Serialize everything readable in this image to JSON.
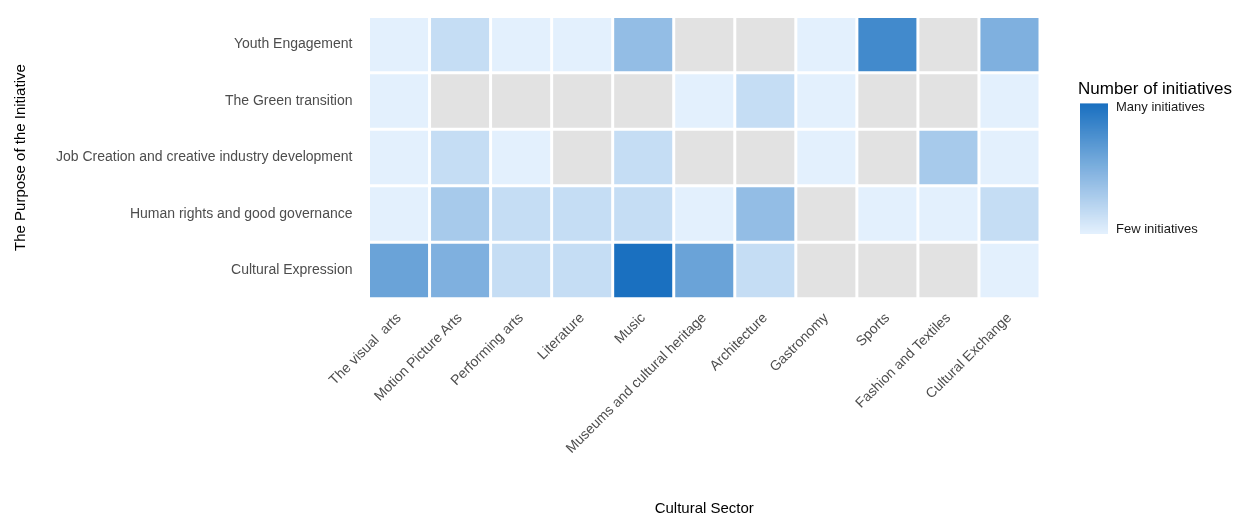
{
  "chart_data": {
    "type": "heatmap",
    "xlabel": "Cultural Sector",
    "ylabel": "The Purpose of the Initiative",
    "clabel": "Number of initiatives",
    "categories": [
      "The visual  arts",
      "Motion Picture Arts",
      "Performing arts",
      "Literature",
      "Music",
      "Museums and cultural heritage",
      "Architecture",
      "Gastronomy",
      "Sports",
      "Fashion and Textiles",
      "Cultural Exchange"
    ],
    "y_categories": [
      "Youth Engagement",
      "The Green transition",
      "Job Creation and creative industry development",
      "Human rights and good governance",
      "Cultural Expression"
    ],
    "cells": [
      [
        0,
        0.15,
        0,
        0,
        0.4,
        null,
        null,
        0,
        0.8,
        null,
        0.5
      ],
      [
        0,
        null,
        null,
        null,
        null,
        0,
        0.15,
        0,
        null,
        null,
        0
      ],
      [
        0,
        0.15,
        0,
        null,
        0.15,
        null,
        null,
        0,
        null,
        0.3,
        0
      ],
      [
        0,
        0.3,
        0.15,
        0.15,
        0.15,
        0,
        0.4,
        null,
        0,
        0,
        0.15
      ],
      [
        0.6,
        0.5,
        0.15,
        0.15,
        1,
        0.6,
        0.15,
        null,
        null,
        null,
        0
      ]
    ],
    "clim": [
      0,
      1
    ],
    "cticks": [
      {
        "value": 0,
        "label": "Few initiatives"
      },
      {
        "value": 1,
        "label": "Many initiatives"
      }
    ]
  }
}
